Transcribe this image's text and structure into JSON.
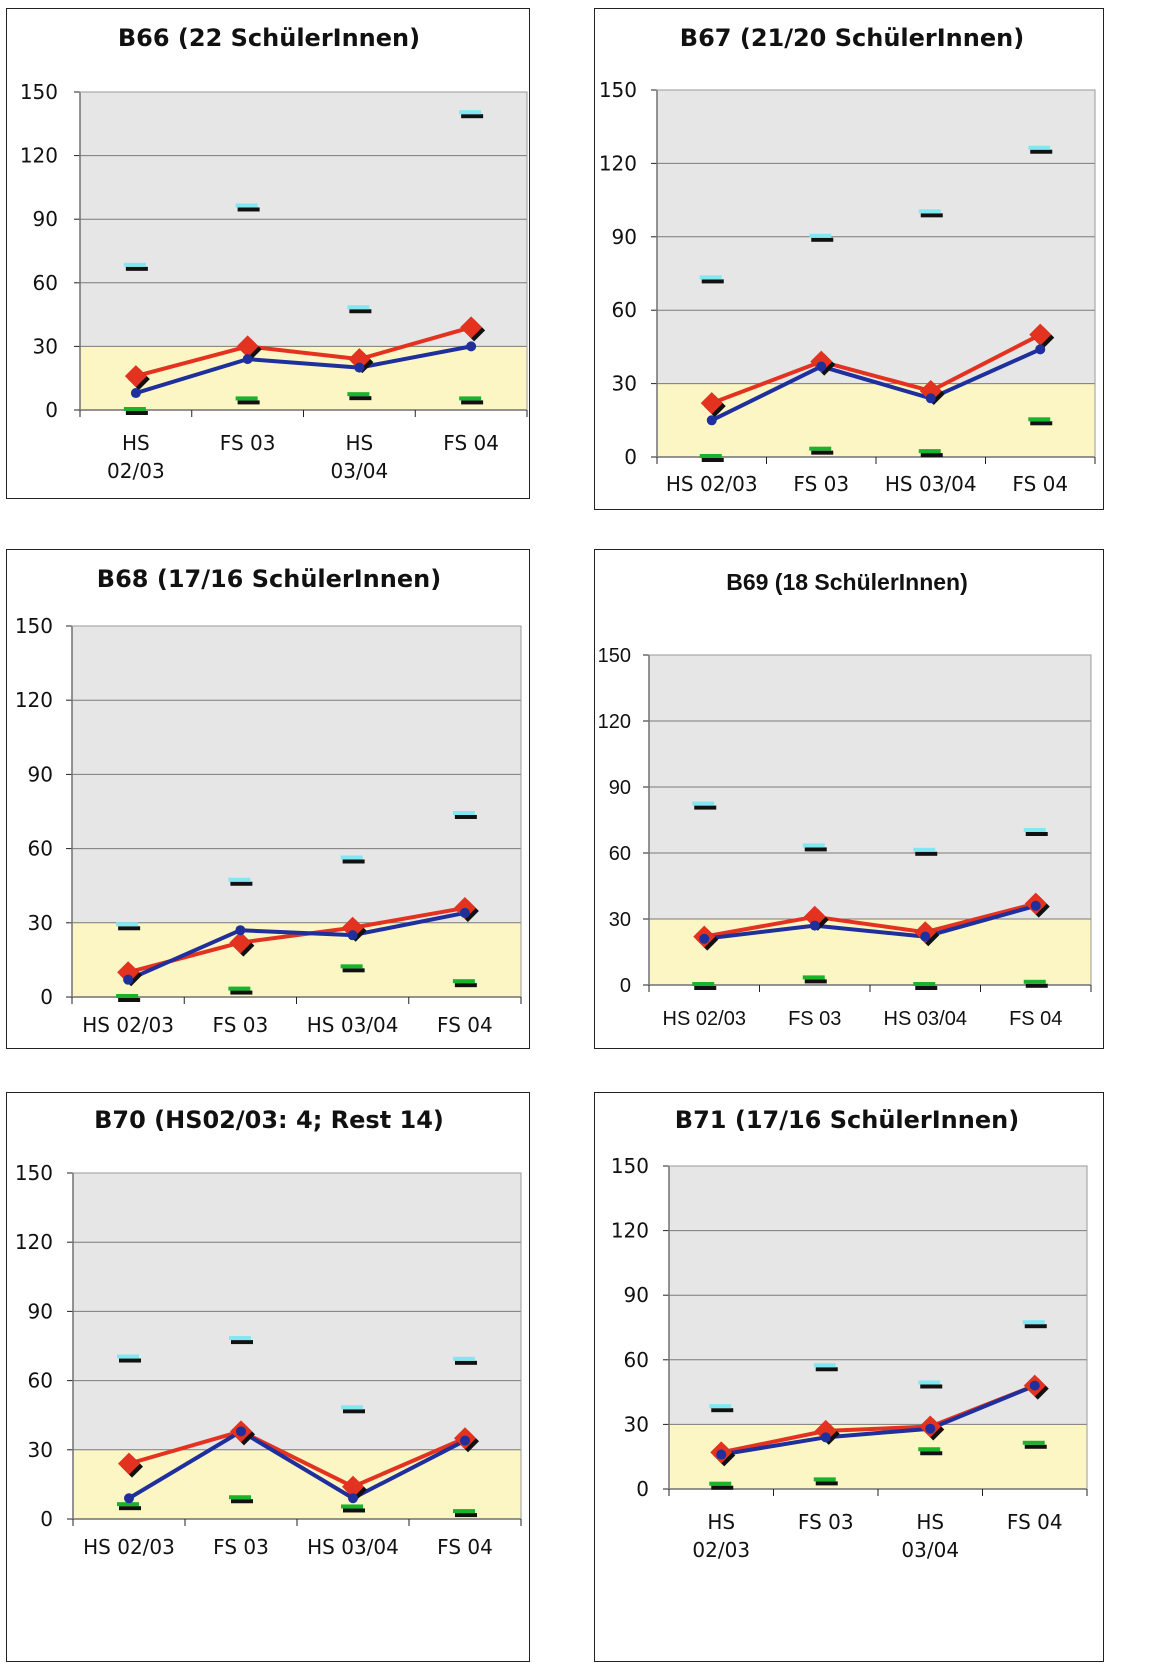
{
  "charts": [
    {
      "id": "b66",
      "title": "B66 (22 SchülerInnen)",
      "font": "normal",
      "categories": [
        "HS 02/03",
        "FS 03",
        "HS 03/04",
        "FS 04"
      ],
      "xlabel_lines": [
        [
          "HS",
          "02/03"
        ],
        [
          "FS 03"
        ],
        [
          "HS",
          "03/04"
        ],
        [
          "FS 04"
        ]
      ],
      "yticks": [
        "150",
        "120",
        "90",
        "60",
        "30",
        "0"
      ],
      "chart_data": {
        "type": "line",
        "ylim": [
          0,
          150
        ],
        "band": [
          0,
          30
        ],
        "series": [
          {
            "values": [
              16,
              30,
              24,
              39
            ],
            "color": "#e3321f",
            "marker": "diamond"
          },
          {
            "values": [
              8,
              24,
              20,
              30
            ],
            "color": "#1f2f9c",
            "marker": "circle"
          }
        ],
        "upper_marks": [
          68,
          96,
          48,
          140
        ],
        "lower_marks": [
          0,
          5,
          7,
          5
        ]
      }
    },
    {
      "id": "b67",
      "title": "B67 (21/20 SchülerInnen)",
      "font": "normal",
      "categories": [
        "HS 02/03",
        "FS 03",
        "HS 03/04",
        "FS 04"
      ],
      "xlabel_lines": [
        [
          "HS 02/03"
        ],
        [
          "FS 03"
        ],
        [
          "HS 03/04"
        ],
        [
          "FS 04"
        ]
      ],
      "yticks": [
        "150",
        "120",
        "90",
        "60",
        "30",
        "0"
      ],
      "chart_data": {
        "type": "line",
        "ylim": [
          0,
          150
        ],
        "band": [
          0,
          30
        ],
        "series": [
          {
            "values": [
              22,
              39,
              27,
              50
            ],
            "color": "#e3321f",
            "marker": "diamond"
          },
          {
            "values": [
              15,
              37,
              24,
              44
            ],
            "color": "#1f2f9c",
            "marker": "circle"
          }
        ],
        "upper_marks": [
          73,
          90,
          100,
          126
        ],
        "lower_marks": [
          0,
          3,
          2,
          15
        ]
      }
    },
    {
      "id": "b68",
      "title": "B68 (17/16 SchülerInnen)",
      "font": "normal",
      "categories": [
        "HS 02/03",
        "FS 03",
        "HS 03/04",
        "FS 04"
      ],
      "xlabel_lines": [
        [
          "HS 02/03"
        ],
        [
          "FS 03"
        ],
        [
          "HS 03/04"
        ],
        [
          "FS 04"
        ]
      ],
      "yticks": [
        "150",
        "120",
        "90",
        "60",
        "30",
        "0"
      ],
      "chart_data": {
        "type": "line",
        "ylim": [
          0,
          150
        ],
        "band": [
          0,
          30
        ],
        "series": [
          {
            "values": [
              10,
              22,
              28,
              36
            ],
            "color": "#e3321f",
            "marker": "diamond"
          },
          {
            "values": [
              7,
              27,
              25,
              34
            ],
            "color": "#1f2f9c",
            "marker": "circle"
          }
        ],
        "upper_marks": [
          29,
          47,
          56,
          74
        ],
        "lower_marks": [
          0,
          3,
          12,
          6
        ]
      }
    },
    {
      "id": "b69",
      "title": "B69 (18 SchülerInnen)",
      "font": "condensed",
      "categories": [
        "HS 02/03",
        "FS 03",
        "HS 03/04",
        "FS 04"
      ],
      "xlabel_lines": [
        [
          "HS 02/03"
        ],
        [
          "FS 03"
        ],
        [
          "HS 03/04"
        ],
        [
          "FS 04"
        ]
      ],
      "yticks": [
        "150",
        "120",
        "90",
        "60",
        "30",
        "0"
      ],
      "chart_data": {
        "type": "line",
        "ylim": [
          0,
          150
        ],
        "band": [
          0,
          30
        ],
        "series": [
          {
            "values": [
              22,
              31,
              24,
              37
            ],
            "color": "#e3321f",
            "marker": "diamond"
          },
          {
            "values": [
              21,
              27,
              22,
              36
            ],
            "color": "#1f2f9c",
            "marker": "circle"
          }
        ],
        "upper_marks": [
          82,
          63,
          61,
          70
        ],
        "lower_marks": [
          0,
          3,
          0,
          1
        ]
      }
    },
    {
      "id": "b70",
      "title": "B70 (HS02/03: 4; Rest 14)",
      "font": "normal",
      "categories": [
        "HS 02/03",
        "FS 03",
        "HS 03/04",
        "FS 04"
      ],
      "xlabel_lines": [
        [
          "HS 02/03"
        ],
        [
          "FS 03"
        ],
        [
          "HS 03/04"
        ],
        [
          "FS 04"
        ]
      ],
      "yticks": [
        "150",
        "120",
        "90",
        "60",
        "30",
        "0"
      ],
      "chart_data": {
        "type": "line",
        "ylim": [
          0,
          150
        ],
        "band": [
          0,
          30
        ],
        "series": [
          {
            "values": [
              24,
              38,
              14,
              35
            ],
            "color": "#e3321f",
            "marker": "diamond"
          },
          {
            "values": [
              9,
              38,
              9,
              34
            ],
            "color": "#1f2f9c",
            "marker": "circle"
          }
        ],
        "upper_marks": [
          70,
          78,
          48,
          69
        ],
        "lower_marks": [
          6,
          9,
          5,
          3
        ]
      }
    },
    {
      "id": "b71",
      "title": "B71 (17/16 SchülerInnen)",
      "font": "normal",
      "categories": [
        "HS 02/03",
        "FS 03",
        "HS 03/04",
        "FS 04"
      ],
      "xlabel_lines": [
        [
          "HS",
          "02/03"
        ],
        [
          "FS 03"
        ],
        [
          "HS",
          "03/04"
        ],
        [
          "FS 04"
        ]
      ],
      "yticks": [
        "150",
        "120",
        "90",
        "60",
        "30",
        "0"
      ],
      "chart_data": {
        "type": "line",
        "ylim": [
          0,
          150
        ],
        "band": [
          0,
          30
        ],
        "series": [
          {
            "values": [
              17,
              27,
              29,
              48
            ],
            "color": "#e3321f",
            "marker": "diamond"
          },
          {
            "values": [
              16,
              24,
              28,
              48
            ],
            "color": "#1f2f9c",
            "marker": "circle"
          }
        ],
        "upper_marks": [
          38,
          57,
          49,
          77
        ],
        "lower_marks": [
          2,
          4,
          18,
          21
        ]
      }
    }
  ],
  "colors": {
    "plot_bg": "#e6e6e6",
    "band": "#fbf6c4",
    "band_line": "#b8b27a",
    "grid": "#7a7a7a",
    "upper_mark": "#7fe8f2",
    "lower_mark": "#1ab32c",
    "mark_shadow": "#111111"
  }
}
